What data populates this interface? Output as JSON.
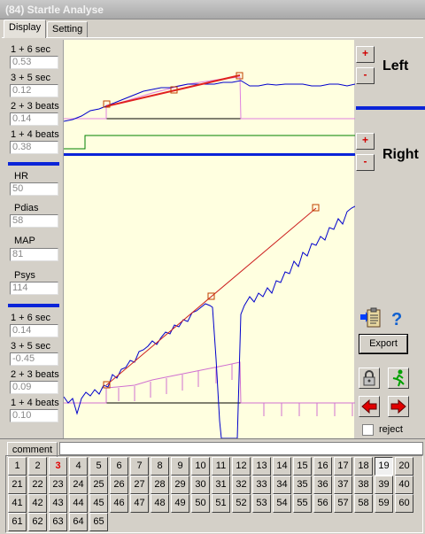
{
  "window": {
    "title": "(84) Startle Analyse"
  },
  "tabs": [
    {
      "label": "Display"
    },
    {
      "label": "Setting"
    }
  ],
  "left_top": [
    {
      "label": "1 + 6 sec",
      "value": "0.53"
    },
    {
      "label": "3 + 5 sec",
      "value": "0.12"
    },
    {
      "label": "2 + 3 beats",
      "value": "0.14"
    },
    {
      "label": "1 + 4 beats",
      "value": "0.38"
    }
  ],
  "vitals": [
    {
      "label": "HR",
      "value": "50"
    },
    {
      "label": "Pdias",
      "value": "58"
    },
    {
      "label": "MAP",
      "value": "81"
    },
    {
      "label": "Psys",
      "value": "114"
    }
  ],
  "left_bottom": [
    {
      "label": "1 + 6 sec",
      "value": "0.14"
    },
    {
      "label": "3 + 5 sec",
      "value": "-0.45"
    },
    {
      "label": "2 + 3 beats",
      "value": "0.09"
    },
    {
      "label": "1 + 4 beats",
      "value": "0.10"
    }
  ],
  "right_panel": {
    "plus": "+",
    "minus": "-",
    "left_label": "Left",
    "right_label": "Right",
    "export_label": "Export",
    "reject_label": "reject"
  },
  "colors": {
    "accent_blue": "#0a24d8",
    "plot_bg": "#ffffe0",
    "red": "#e00000"
  },
  "bottom": {
    "comment_label": "comment",
    "comment_value": "",
    "numbers": [
      "1",
      "2",
      "3",
      "4",
      "5",
      "6",
      "7",
      "8",
      "9",
      "10",
      "11",
      "12",
      "13",
      "14",
      "15",
      "16",
      "17",
      "18",
      "19",
      "20",
      "21",
      "22",
      "23",
      "24",
      "25",
      "26",
      "27",
      "28",
      "29",
      "30",
      "31",
      "32",
      "33",
      "34",
      "35",
      "36",
      "37",
      "38",
      "39",
      "40",
      "41",
      "42",
      "43",
      "44",
      "45",
      "46",
      "47",
      "48",
      "49",
      "50",
      "51",
      "52",
      "53",
      "54",
      "55",
      "56",
      "57",
      "58",
      "59",
      "60",
      "61",
      "62",
      "63",
      "64",
      "65"
    ],
    "highlighted": "3",
    "selected": "19"
  }
}
